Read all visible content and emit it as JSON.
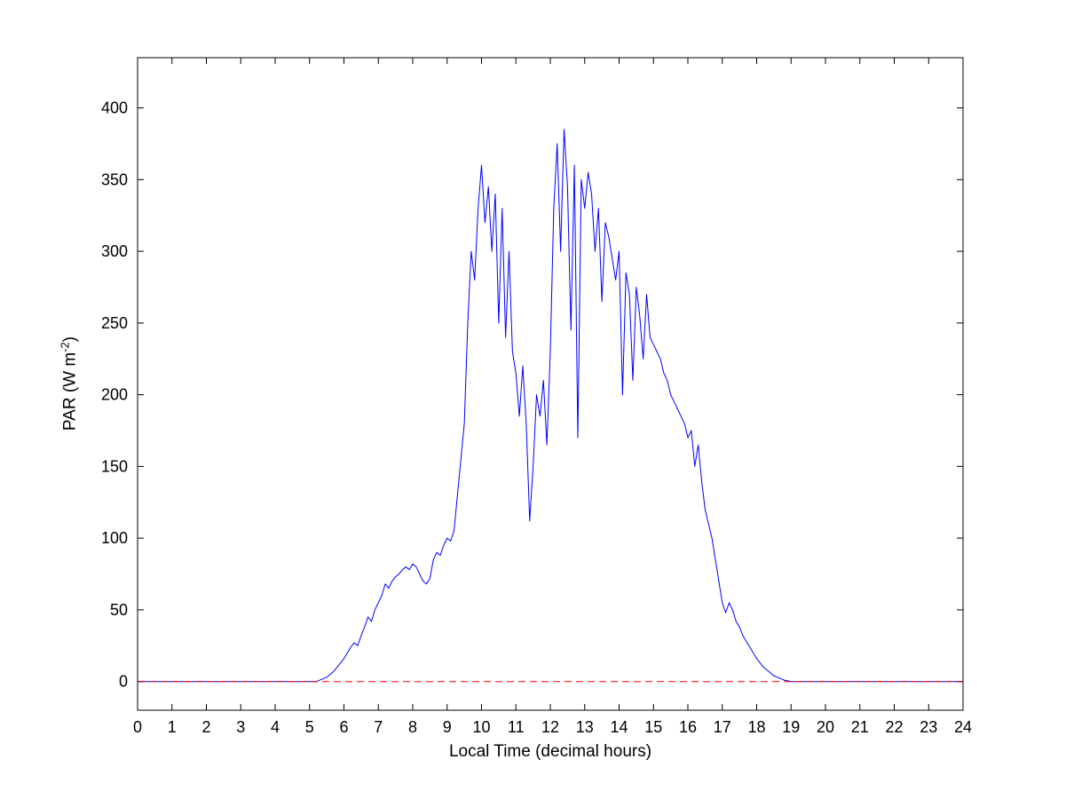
{
  "chart_data": {
    "type": "line",
    "title": "",
    "xlabel": "Local Time (decimal hours)",
    "ylabel": "PAR (W m⁻²)",
    "ylabel_prefix": "PAR (W m",
    "ylabel_sup": "-2",
    "ylabel_suffix": ")",
    "xlim": [
      0,
      24
    ],
    "ylim": [
      -20,
      435
    ],
    "x_ticks": [
      0,
      1,
      2,
      3,
      4,
      5,
      6,
      7,
      8,
      9,
      10,
      11,
      12,
      13,
      14,
      15,
      16,
      17,
      18,
      19,
      20,
      21,
      22,
      23,
      24
    ],
    "y_ticks": [
      0,
      50,
      100,
      150,
      200,
      250,
      300,
      350,
      400
    ],
    "grid": false,
    "legend": null,
    "series": [
      {
        "name": "PAR",
        "type": "line",
        "color": "#0000ff",
        "x_start": 0,
        "x_step": 0.1,
        "values": [
          0,
          0,
          0,
          0,
          0,
          0,
          0,
          0,
          0,
          0,
          0,
          0,
          0,
          0,
          0,
          0,
          0,
          0,
          0,
          0,
          0,
          0,
          0,
          0,
          0,
          0,
          0,
          0,
          0,
          0,
          0,
          0,
          0,
          0,
          0,
          0,
          0,
          0,
          0,
          0,
          0,
          0,
          0,
          0,
          0,
          0,
          0,
          0,
          0,
          0,
          0,
          0,
          0,
          1,
          2,
          3,
          5,
          7,
          10,
          13,
          16,
          20,
          24,
          27,
          25,
          32,
          38,
          45,
          42,
          50,
          55,
          60,
          68,
          65,
          70,
          73,
          75,
          78,
          80,
          78,
          82,
          80,
          75,
          70,
          68,
          72,
          85,
          90,
          88,
          95,
          100,
          98,
          105,
          130,
          155,
          180,
          250,
          300,
          280,
          330,
          360,
          320,
          345,
          300,
          340,
          250,
          330,
          240,
          300,
          230,
          215,
          185,
          220,
          180,
          112,
          150,
          200,
          185,
          210,
          165,
          230,
          330,
          375,
          300,
          385,
          345,
          245,
          360,
          170,
          350,
          330,
          355,
          340,
          300,
          330,
          265,
          320,
          310,
          295,
          280,
          300,
          200,
          285,
          270,
          210,
          275,
          255,
          225,
          270,
          240,
          235,
          230,
          225,
          215,
          210,
          200,
          195,
          190,
          185,
          180,
          170,
          175,
          150,
          165,
          140,
          120,
          110,
          100,
          85,
          70,
          55,
          48,
          55,
          50,
          42,
          38,
          32,
          28,
          24,
          20,
          16,
          13,
          10,
          8,
          6,
          4,
          3,
          2,
          1,
          0.5,
          0,
          0,
          0,
          0,
          0,
          0,
          0,
          0,
          0,
          0,
          0,
          0,
          0,
          0,
          0,
          0,
          0,
          0,
          0,
          0,
          0,
          0,
          0,
          0,
          0,
          0,
          0,
          0,
          0,
          0,
          0,
          0,
          0,
          0,
          0,
          0,
          0,
          0,
          0,
          0,
          0,
          0,
          0,
          0,
          0,
          0,
          0,
          0,
          0,
          0,
          0
        ]
      }
    ],
    "reference_lines": [
      {
        "name": "zero-line",
        "y": 0,
        "x_range": [
          0,
          24
        ],
        "color": "#ff0000",
        "style": "dashed"
      }
    ]
  }
}
